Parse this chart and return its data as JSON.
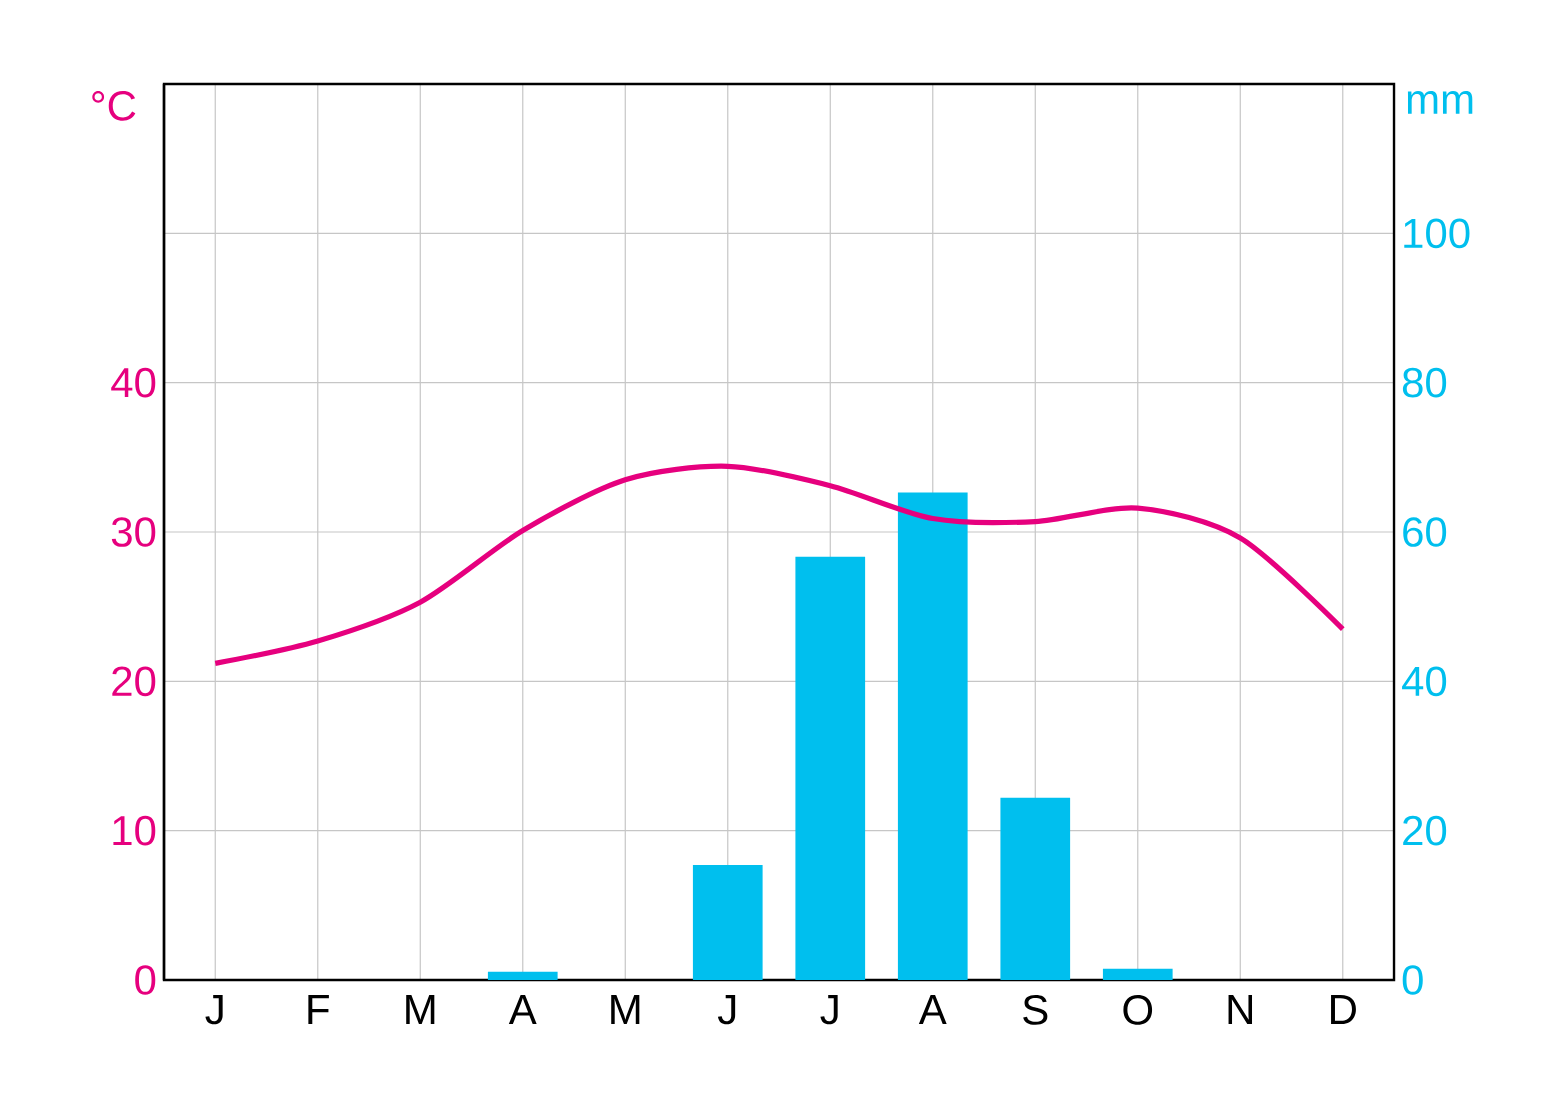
{
  "chart_data": {
    "type": "line",
    "ylabel": "°C",
    "y2label": "mm",
    "categories": [
      "J",
      "F",
      "M",
      "A",
      "M",
      "J",
      "J",
      "A",
      "S",
      "O",
      "N",
      "D"
    ],
    "series": [
      {
        "color": "#e6007e",
        "values": [
          21.2,
          22.7,
          25.3,
          30.1,
          33.5,
          34.4,
          33.1,
          30.9,
          30.7,
          31.6,
          29.6,
          23.5
        ]
      },
      {
        "type": "bar",
        "axis": "y2",
        "color": "#00bfee",
        "values": [
          0,
          0,
          0,
          1.1,
          0,
          15.4,
          56.7,
          65.3,
          24.4,
          1.5,
          0,
          0
        ]
      }
    ],
    "ylim": [
      0,
      60
    ],
    "yticks": [
      0,
      10,
      20,
      30,
      40
    ],
    "y2lim": [
      0,
      120
    ],
    "y2ticks": [
      0,
      20,
      40,
      60,
      80,
      100
    ],
    "grid": true
  }
}
